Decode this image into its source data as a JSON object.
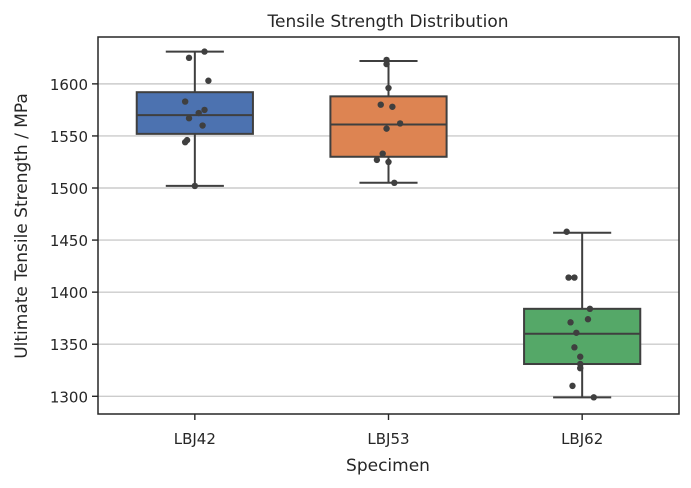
{
  "chart_data": {
    "type": "box",
    "title": "Tensile Strength Distribution",
    "xlabel": "Specimen",
    "ylabel": "Ultimate Tensile Strength / MPa",
    "ylim": [
      1283,
      1645
    ],
    "yticks": [
      1300,
      1350,
      1400,
      1450,
      1500,
      1550,
      1600
    ],
    "grid": "y",
    "legend": "none",
    "categories": [
      "LBJ42",
      "LBJ53",
      "LBJ62"
    ],
    "boxes": [
      {
        "name": "LBJ42",
        "color": "#4C72B0",
        "whisker_low": 1502,
        "q1": 1552,
        "median": 1570,
        "q3": 1592,
        "whisker_high": 1631,
        "points": [
          {
            "dx": 0.05,
            "y": 1631
          },
          {
            "dx": -0.03,
            "y": 1625
          },
          {
            "dx": 0.07,
            "y": 1603
          },
          {
            "dx": -0.05,
            "y": 1583
          },
          {
            "dx": 0.05,
            "y": 1575
          },
          {
            "dx": 0.02,
            "y": 1572
          },
          {
            "dx": -0.03,
            "y": 1567
          },
          {
            "dx": 0.04,
            "y": 1560
          },
          {
            "dx": -0.04,
            "y": 1546
          },
          {
            "dx": -0.05,
            "y": 1544
          },
          {
            "dx": 0.0,
            "y": 1502
          }
        ]
      },
      {
        "name": "LBJ53",
        "color": "#DD8452",
        "whisker_low": 1505,
        "q1": 1530,
        "median": 1561,
        "q3": 1588,
        "whisker_high": 1622,
        "points": [
          {
            "dx": -0.01,
            "y": 1623
          },
          {
            "dx": -0.01,
            "y": 1619
          },
          {
            "dx": 0.0,
            "y": 1596
          },
          {
            "dx": -0.04,
            "y": 1580
          },
          {
            "dx": 0.02,
            "y": 1578
          },
          {
            "dx": 0.06,
            "y": 1562
          },
          {
            "dx": -0.01,
            "y": 1557
          },
          {
            "dx": -0.03,
            "y": 1533
          },
          {
            "dx": -0.06,
            "y": 1527
          },
          {
            "dx": 0.0,
            "y": 1525
          },
          {
            "dx": 0.03,
            "y": 1505
          }
        ]
      },
      {
        "name": "LBJ62",
        "color": "#55A868",
        "whisker_low": 1299,
        "q1": 1331,
        "median": 1360,
        "q3": 1384,
        "whisker_high": 1457,
        "points": [
          {
            "dx": -0.08,
            "y": 1458
          },
          {
            "dx": -0.07,
            "y": 1414
          },
          {
            "dx": -0.04,
            "y": 1414
          },
          {
            "dx": 0.04,
            "y": 1384
          },
          {
            "dx": 0.03,
            "y": 1374
          },
          {
            "dx": -0.06,
            "y": 1371
          },
          {
            "dx": -0.03,
            "y": 1361
          },
          {
            "dx": -0.04,
            "y": 1347
          },
          {
            "dx": -0.01,
            "y": 1338
          },
          {
            "dx": -0.01,
            "y": 1331
          },
          {
            "dx": -0.01,
            "y": 1327
          },
          {
            "dx": -0.05,
            "y": 1310
          },
          {
            "dx": 0.06,
            "y": 1299
          }
        ]
      }
    ]
  }
}
